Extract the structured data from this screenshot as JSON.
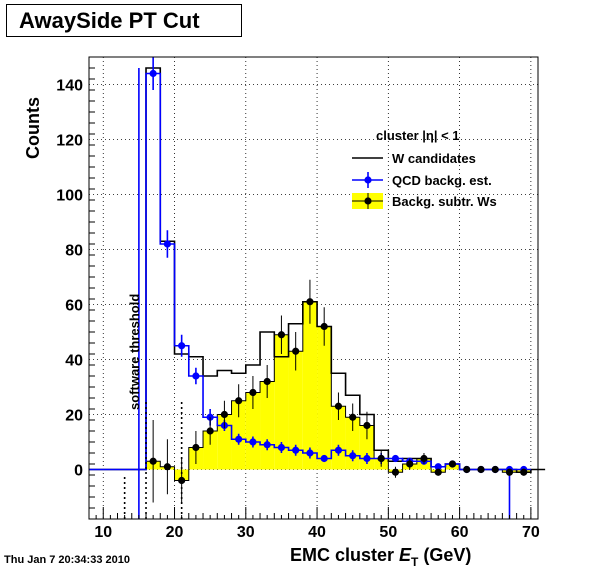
{
  "page": {
    "title": "AwaySide PT Cut",
    "timestamp": "Thu Jan  7 20:34:33 2010"
  },
  "colors": {
    "w_line": "#000000",
    "qcd": "#0000ff",
    "fill": "#ffff00",
    "points": "#000000"
  },
  "chart_data": {
    "type": "bar",
    "title": "AwaySide PT Cut",
    "xlabel": "EMC cluster E_T (GeV)",
    "xlabel_main": "EMC cluster ",
    "xlabel_sym": "E",
    "xlabel_sub": "T",
    "xlabel_unit": " (GeV)",
    "ylabel": "Counts",
    "xlim": [
      8,
      71
    ],
    "ylim": [
      -18,
      150
    ],
    "x_ticks": [
      10,
      20,
      30,
      40,
      50,
      60,
      70
    ],
    "y_ticks": [
      0,
      20,
      40,
      60,
      80,
      100,
      120,
      140
    ],
    "grid": true,
    "legend_position": "top-right",
    "legend": {
      "header": "cluster |η| < 1",
      "w": "W candidates",
      "qcd": "QCD backg. est.",
      "sub": "Backg. subtr. Ws"
    },
    "annotation": "software threshold",
    "threshold_lines": [
      13,
      16,
      21
    ],
    "bin_width": 2,
    "w_candidates": {
      "x": [
        8,
        10,
        12,
        14,
        16,
        18,
        20,
        22,
        24,
        26,
        28,
        30,
        32,
        34,
        36,
        38,
        40,
        42,
        44,
        46,
        48,
        50,
        52,
        54,
        56,
        58,
        60,
        62,
        64,
        66,
        68,
        70
      ],
      "values": [
        0,
        0,
        0,
        0,
        146,
        83,
        42,
        41,
        34,
        36,
        35,
        38,
        50,
        41,
        53,
        61,
        52,
        35,
        27,
        20,
        7,
        3,
        4,
        4,
        1,
        2,
        0,
        0,
        0,
        0,
        -1,
        0
      ]
    },
    "qcd_estimate": {
      "x": [
        9,
        11,
        13,
        15,
        17,
        19,
        21,
        23,
        25,
        27,
        29,
        31,
        33,
        35,
        37,
        39,
        41,
        43,
        45,
        47,
        49,
        51,
        53,
        55,
        57,
        59,
        61,
        63,
        65,
        67,
        69
      ],
      "values": [
        0,
        0,
        0,
        0,
        144,
        82,
        45,
        34,
        19,
        16,
        11,
        10,
        9,
        8,
        7,
        6,
        4,
        7,
        5,
        4,
        4,
        4,
        3,
        3,
        1,
        2,
        0,
        0,
        0,
        0,
        0
      ],
      "errors": [
        0,
        0,
        0,
        0,
        6,
        5,
        4,
        3,
        3,
        2,
        2,
        2,
        2,
        2,
        2,
        2,
        1,
        2,
        2,
        2,
        2,
        1,
        1,
        1,
        1,
        1,
        1,
        1,
        1,
        1,
        1
      ]
    },
    "background_subtracted": {
      "x": [
        17,
        19,
        21,
        23,
        25,
        27,
        29,
        31,
        33,
        35,
        37,
        39,
        41,
        43,
        45,
        47,
        49,
        51,
        53,
        55,
        57,
        59,
        61,
        63,
        65,
        67,
        69
      ],
      "values": [
        3,
        1,
        -4,
        8,
        14,
        20,
        25,
        28,
        32,
        49,
        43,
        61,
        52,
        23,
        19,
        16,
        4,
        -1,
        2,
        4,
        -1,
        2,
        0,
        0,
        0,
        -1,
        -1
      ],
      "errors": [
        15,
        10,
        8,
        6,
        5,
        5,
        6,
        6,
        6,
        7,
        7,
        8,
        7,
        5,
        5,
        5,
        3,
        2,
        2,
        2,
        1,
        1,
        1,
        1,
        1,
        1,
        1
      ]
    }
  }
}
